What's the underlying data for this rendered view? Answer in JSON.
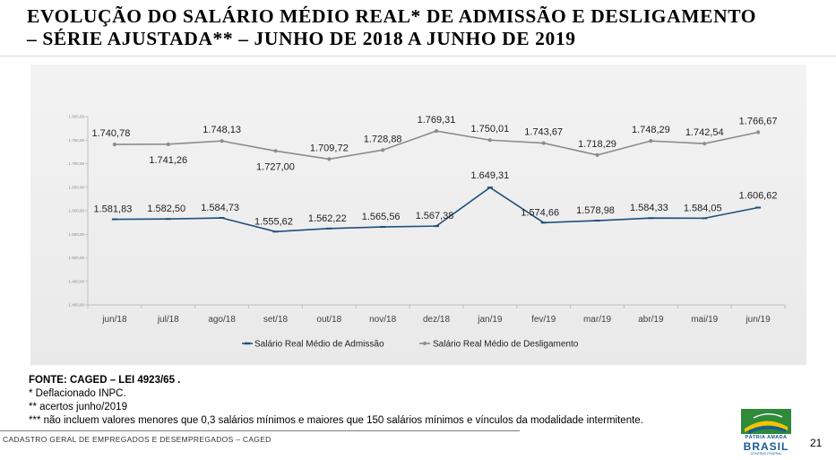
{
  "title": {
    "line1": "EVOLUÇÃO DO SALÁRIO MÉDIO REAL* DE ADMISSÃO E DESLIGAMENTO",
    "line2": "– SÉRIE AJUSTADA** – JUNHO DE 2018 A JUNHO DE 2019"
  },
  "chart_data": {
    "type": "line",
    "categories": [
      "jun/18",
      "jul/18",
      "ago/18",
      "set/18",
      "out/18",
      "nov/18",
      "dez/18",
      "jan/19",
      "fev/19",
      "mar/19",
      "abr/19",
      "mai/19",
      "jun/19"
    ],
    "series": [
      {
        "name": "Salário Real Médio de Admissão",
        "color": "#1f4e79",
        "values": [
          1581.83,
          1582.5,
          1584.73,
          1555.62,
          1562.22,
          1565.56,
          1567.38,
          1649.31,
          1574.66,
          1578.98,
          1584.33,
          1584.05,
          1606.62
        ],
        "labels": [
          "1.581,83",
          "1.582,50",
          "1.584,73",
          "1.555,62",
          "1.562,22",
          "1.565,56",
          "1.567,38",
          "1.649,31",
          "1.574,66",
          "1.578,98",
          "1.584,33",
          "1.584,05",
          "1.606,62"
        ]
      },
      {
        "name": "Salário Real Médio de Desligamento",
        "color": "#8c8c8c",
        "values": [
          1740.78,
          1741.26,
          1748.13,
          1727.0,
          1709.72,
          1728.88,
          1769.31,
          1750.01,
          1743.67,
          1718.29,
          1748.29,
          1742.54,
          1766.67
        ],
        "labels": [
          "1.740,78",
          "1.741,26",
          "1.748,13",
          "1.727,00",
          "1.709,72",
          "1.728,88",
          "1.769,31",
          "1.750,01",
          "1.743,67",
          "1.718,29",
          "1.748,29",
          "1.742,54",
          "1.766,67"
        ]
      }
    ],
    "yticks": [
      1400,
      1450,
      1500,
      1550,
      1600,
      1650,
      1700,
      1750,
      1800
    ],
    "ytick_labels": [
      "1.400,00",
      "1.450,00",
      "1.500,00",
      "1.550,00",
      "1.600,00",
      "1.650,00",
      "1.700,00",
      "1.750,00",
      "1.800,00"
    ],
    "ylim": [
      1400,
      1800
    ],
    "legend_position": "bottom"
  },
  "notes": {
    "source": "FONTE: CAGED – LEI 4923/65 .",
    "note1": "* Deflacionado INPC.",
    "note2": "** acertos junho/2019",
    "note3": "*** não incluem valores menores que 0,3 salários mínimos e maiores que 150 salários mínimos e vínculos da modalidade intermitente."
  },
  "footer": {
    "text": "CADASTRO GERAL DE EMPREGADOS E DESEMPREGADOS – CAGED",
    "page_number": "21"
  },
  "logo": {
    "line1": "PÁTRIA AMADA",
    "line2": "BRASIL",
    "line3": "GOVERNO FEDERAL"
  }
}
